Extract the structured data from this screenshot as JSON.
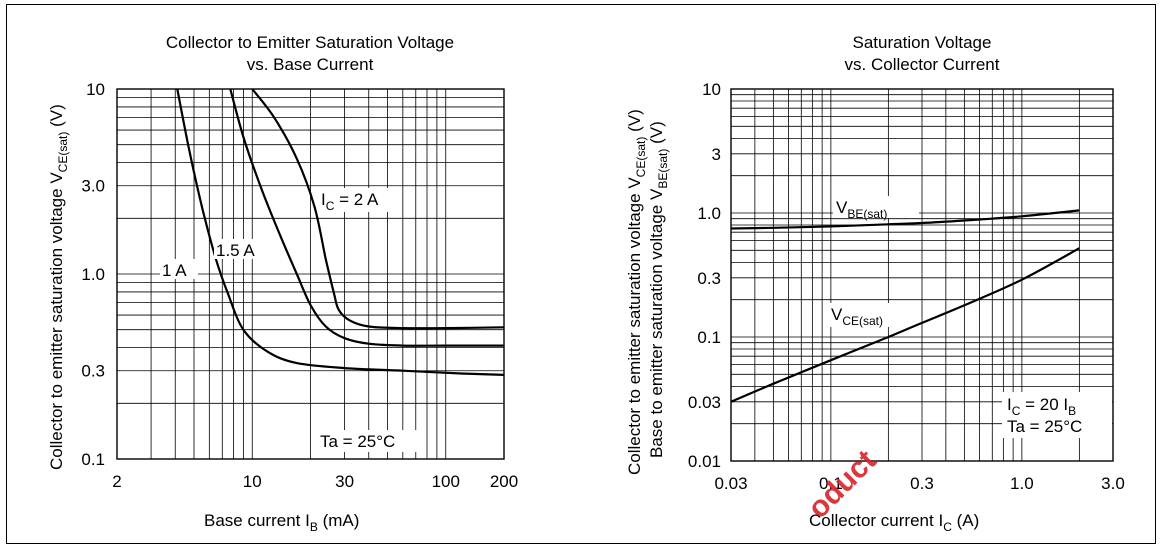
{
  "chart_data": [
    {
      "type": "line",
      "title": "Collector to Emitter Saturation Voltage",
      "subtitle": "vs. Base Current",
      "xlabel": "Base current",
      "xlabel_symbol": "I",
      "xlabel_sub": "B",
      "xlabel_unit": "(mA)",
      "ylabel": "Collector to emitter saturation voltage",
      "ylabel_symbol": "V",
      "ylabel_sub": "CE(sat)",
      "ylabel_unit": "(V)",
      "x_scale": "log",
      "y_scale": "log",
      "xlim": [
        2,
        200
      ],
      "ylim": [
        0.1,
        10
      ],
      "x_ticks": [
        2,
        10,
        30,
        100,
        200
      ],
      "x_tick_labels": [
        "2",
        "10",
        "30",
        "100",
        "200"
      ],
      "y_ticks": [
        0.1,
        0.3,
        1.0,
        3.0,
        10
      ],
      "y_tick_labels": [
        "0.1",
        "0.3",
        "1.0",
        "3.0",
        "10"
      ],
      "grid": true,
      "annotation": "Ta = 25°C",
      "series": [
        {
          "name": "1 A",
          "x": [
            4.1,
            4.7,
            5.5,
            6.5,
            7.5,
            9,
            12,
            17,
            30,
            60,
            120,
            200
          ],
          "y": [
            10,
            4.8,
            2.3,
            1.2,
            0.78,
            0.5,
            0.38,
            0.33,
            0.31,
            0.3,
            0.29,
            0.285
          ]
        },
        {
          "name": "1.5 A",
          "x": [
            7.7,
            9,
            11,
            14,
            17,
            20,
            24,
            30,
            40,
            60,
            100,
            200
          ],
          "y": [
            10,
            5.5,
            3.0,
            1.6,
            1.0,
            0.68,
            0.52,
            0.45,
            0.42,
            0.41,
            0.41,
            0.41
          ]
        },
        {
          "name": "I_C = 2 A",
          "x": [
            10,
            13,
            17,
            21,
            24,
            26.5,
            28,
            32,
            40,
            60,
            100,
            200
          ],
          "y": [
            10,
            7.0,
            4.2,
            2.3,
            1.2,
            0.78,
            0.64,
            0.56,
            0.52,
            0.51,
            0.51,
            0.515
          ]
        }
      ],
      "label_prefix": "I",
      "label_prefix_sub": "C",
      "label_suffix": " = 2 A"
    },
    {
      "type": "line",
      "title": "Saturation Voltage",
      "subtitle": "vs. Collector Current",
      "xlabel": "Collector current",
      "xlabel_symbol": "I",
      "xlabel_sub": "C",
      "xlabel_unit": "(A)",
      "ylabel": "Collector to emitter saturation voltage",
      "ylabel2": "Base to emitter saturation voltage",
      "ylabel_symbol": "V",
      "ylabel_sub": "CE(sat)",
      "ylabel2_sub": "BE(sat)",
      "ylabel_unit": "(V)",
      "x_scale": "log",
      "y_scale": "log",
      "xlim": [
        0.03,
        3.0
      ],
      "ylim": [
        0.01,
        10
      ],
      "x_ticks": [
        0.03,
        0.1,
        0.3,
        1.0,
        3.0
      ],
      "x_tick_labels": [
        "0.03",
        "0.1",
        "0.3",
        "1.0",
        "3.0"
      ],
      "y_ticks": [
        0.01,
        0.03,
        0.1,
        0.3,
        1.0,
        3,
        10
      ],
      "y_tick_labels": [
        "0.01",
        "0.03",
        "0.1",
        "0.3",
        "1.0",
        "3",
        "10"
      ],
      "grid": true,
      "annotation_line1_prefix": "I",
      "annotation_line1_sub": "C",
      "annotation_line1_suffix": " = 20 I",
      "annotation_line1_sub2": "B",
      "annotation_line2": "Ta = 25°C",
      "series": [
        {
          "name": "V_BE(sat)",
          "x": [
            0.03,
            0.05,
            0.1,
            0.2,
            0.3,
            0.5,
            1.0,
            2.0
          ],
          "y": [
            0.75,
            0.76,
            0.78,
            0.81,
            0.83,
            0.87,
            0.94,
            1.05
          ]
        },
        {
          "name": "V_CE(sat)",
          "x": [
            0.03,
            0.05,
            0.1,
            0.2,
            0.3,
            0.5,
            1.0,
            2.0
          ],
          "y": [
            0.03,
            0.042,
            0.065,
            0.1,
            0.13,
            0.18,
            0.29,
            0.52
          ]
        }
      ],
      "label1_main": "V",
      "label1_sub": "BE(sat)",
      "label2_main": "V",
      "label2_sub": "CE(sat)"
    }
  ],
  "watermark": "oduct"
}
